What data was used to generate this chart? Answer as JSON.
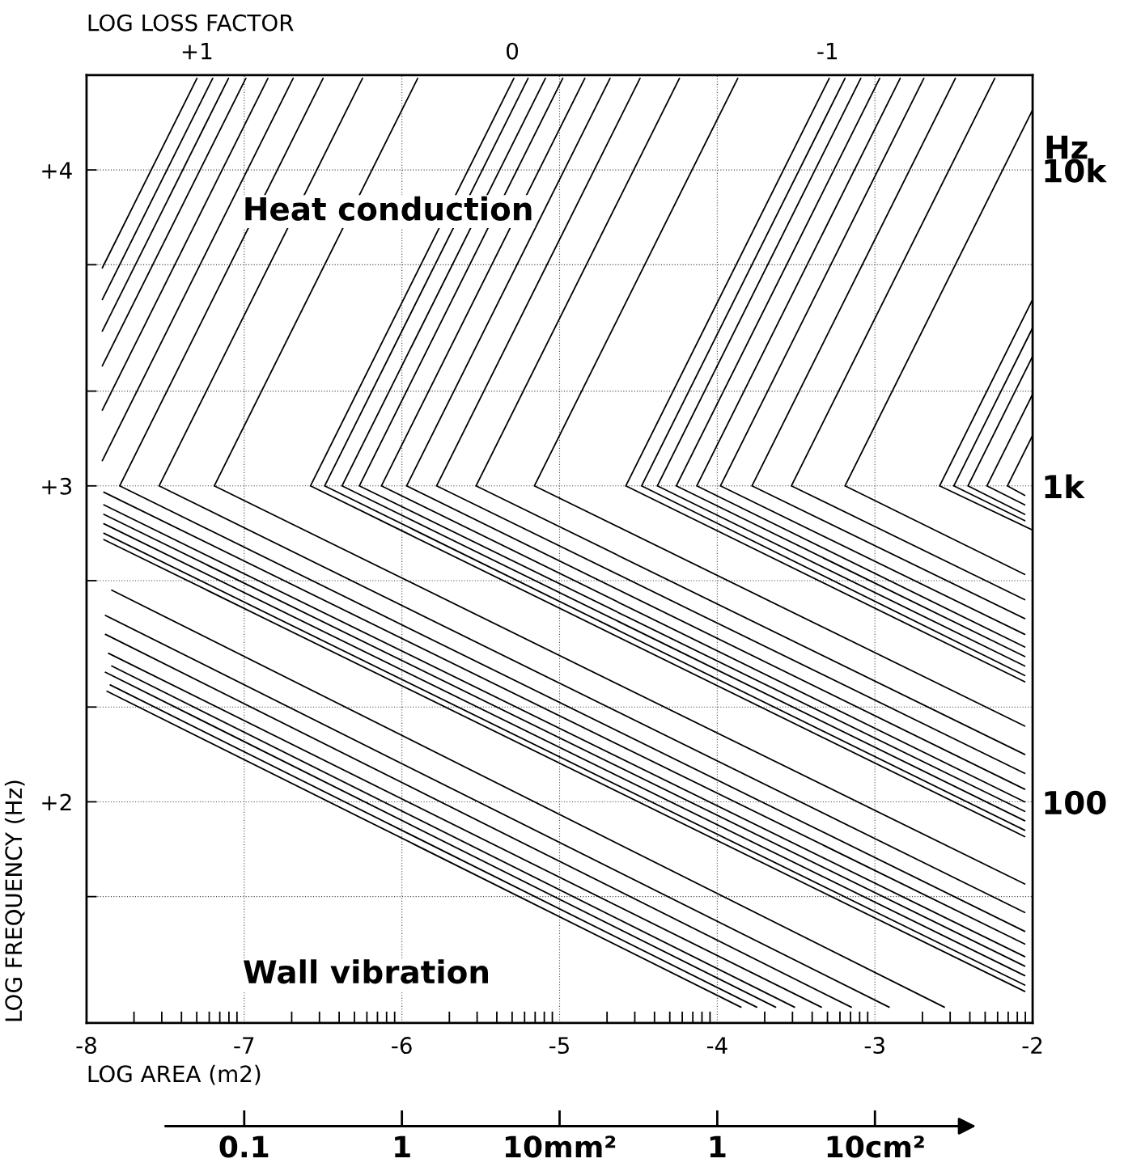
{
  "chart_data": [
    {
      "type": "line",
      "xlabel": "LOG AREA (m2)",
      "ylabel": "LOG FREQUENCY (Hz)",
      "x2label": "LOG LOSS FACTOR",
      "y2label": "Hz",
      "annotations": [
        "Heat conduction",
        "Wall vibration"
      ],
      "xlim": [
        -8,
        -2
      ],
      "ylim": [
        1.3,
        4.3
      ],
      "x2lim": [
        1.35,
        -1.65
      ],
      "y2lim": [
        20,
        20000
      ],
      "log": "y2",
      "xticks": [
        -8,
        {
          "value": -7.699,
          "label": null
        },
        {
          "value": -7.523,
          "label": null
        },
        {
          "value": -7.398,
          "label": null
        },
        {
          "value": -7.301,
          "label": null
        },
        {
          "value": -7.222,
          "label": null
        },
        {
          "value": -7.155,
          "label": null
        },
        {
          "value": -7.097,
          "label": null
        },
        {
          "value": -7.046,
          "label": null
        },
        -7,
        {
          "value": -6.699,
          "label": null
        },
        {
          "value": -6.523,
          "label": null
        },
        {
          "value": -6.398,
          "label": null
        },
        {
          "value": -6.301,
          "label": null
        },
        {
          "value": -6.222,
          "label": null
        },
        {
          "value": -6.155,
          "label": null
        },
        {
          "value": -6.097,
          "label": null
        },
        {
          "value": -6.046,
          "label": null
        },
        -6,
        {
          "value": -5.699,
          "label": null
        },
        {
          "value": -5.523,
          "label": null
        },
        {
          "value": -5.398,
          "label": null
        },
        {
          "value": -5.301,
          "label": null
        },
        {
          "value": -5.222,
          "label": null
        },
        {
          "value": -5.155,
          "label": null
        },
        {
          "value": -5.097,
          "label": null
        },
        {
          "value": -5.046,
          "label": null
        },
        -5,
        {
          "value": -4.699,
          "label": null
        },
        {
          "value": -4.523,
          "label": null
        },
        {
          "value": -4.398,
          "label": null
        },
        {
          "value": -4.301,
          "label": null
        },
        {
          "value": -4.222,
          "label": null
        },
        {
          "value": -4.155,
          "label": null
        },
        {
          "value": -4.097,
          "label": null
        },
        {
          "value": -4.046,
          "label": null
        },
        -4,
        {
          "value": -3.699,
          "label": null
        },
        {
          "value": -3.523,
          "label": null
        },
        {
          "value": -3.398,
          "label": null
        },
        {
          "value": -3.301,
          "label": null
        },
        {
          "value": -3.222,
          "label": null
        },
        {
          "value": -3.155,
          "label": null
        },
        {
          "value": -3.097,
          "label": null
        },
        {
          "value": -3.046,
          "label": null
        },
        -3,
        {
          "value": -2.699,
          "label": null
        },
        {
          "value": -2.523,
          "label": null
        },
        {
          "value": -2.398,
          "label": null
        },
        {
          "value": -2.301,
          "label": null
        },
        {
          "value": -2.222,
          "label": null
        },
        {
          "value": -2.155,
          "label": null
        },
        {
          "value": -2.097,
          "label": null
        },
        {
          "value": -2.046,
          "label": null
        },
        -2
      ],
      "yticks": [
        {
          "value": 1.7,
          "label": null
        },
        {
          "value": 2,
          "label": "+2"
        },
        {
          "value": 2.3,
          "label": null
        },
        {
          "value": 2.7,
          "label": null
        },
        {
          "value": 3,
          "label": "+3"
        },
        {
          "value": 3.3,
          "label": null
        },
        {
          "value": 3.7,
          "label": null
        },
        {
          "value": 4,
          "label": "+4"
        }
      ],
      "x2ticks": [
        {
          "value": 1,
          "label": "+1"
        },
        0,
        -1
      ],
      "y2ticks": [
        {
          "value": 10000,
          "label": "10k"
        },
        {
          "value": 1000,
          "label": "1k"
        },
        100
      ],
      "grid": true,
      "series": [
        {
          "color": "#000000",
          "x": [
            -7.9,
            -7.3
          ],
          "values": [
            3.69,
            4.29
          ]
        },
        {
          "color": "#000000",
          "x": [
            -7.9,
            -7.2
          ],
          "values": [
            3.59,
            4.29
          ]
        },
        {
          "color": "#000000",
          "x": [
            -7.9,
            -7.1
          ],
          "values": [
            3.49,
            4.29
          ]
        },
        {
          "color": "#000000",
          "x": [
            -7.9,
            -6.99
          ],
          "values": [
            3.38,
            4.29
          ]
        },
        {
          "color": "#000000",
          "x": [
            -7.9,
            -6.85
          ],
          "values": [
            3.24,
            4.29
          ]
        },
        {
          "color": "#000000",
          "x": [
            -7.9,
            -6.69
          ],
          "values": [
            3.08,
            4.29
          ]
        },
        {
          "color": "#000000",
          "x": [
            -7.89,
            -2.05
          ],
          "values": [
            2.83,
            1.4
          ]
        },
        {
          "color": "#000000",
          "x": [
            -7.89,
            -2.05
          ],
          "values": [
            2.85,
            1.42
          ]
        },
        {
          "color": "#000000",
          "x": [
            -7.89,
            -2.05
          ],
          "values": [
            2.88,
            1.45
          ]
        },
        {
          "color": "#000000",
          "x": [
            -7.89,
            -2.05
          ],
          "values": [
            2.91,
            1.48
          ]
        },
        {
          "color": "#000000",
          "x": [
            -7.89,
            -2.05
          ],
          "values": [
            2.94,
            1.51
          ]
        },
        {
          "color": "#000000",
          "x": [
            -7.89,
            -2.05
          ],
          "values": [
            2.98,
            1.55
          ]
        },
        {
          "color": "#000000",
          "x": [
            -6.5,
            -7.79,
            -2.05
          ],
          "values": [
            4.29,
            3.0,
            1.59
          ]
        },
        {
          "color": "#000000",
          "x": [
            -6.25,
            -7.54,
            -2.05
          ],
          "values": [
            4.29,
            3.0,
            1.65
          ]
        },
        {
          "color": "#000000",
          "x": [
            -5.9,
            -7.19,
            -2.05
          ],
          "values": [
            4.29,
            3.0,
            1.74
          ]
        },
        {
          "color": "#000000",
          "x": [
            -5.29,
            -6.58,
            -2.05
          ],
          "values": [
            4.29,
            3.0,
            1.89
          ]
        },
        {
          "color": "#000000",
          "x": [
            -5.2,
            -6.49,
            -2.05
          ],
          "values": [
            4.29,
            3.0,
            1.91
          ]
        },
        {
          "color": "#000000",
          "x": [
            -5.09,
            -6.38,
            -2.05
          ],
          "values": [
            4.29,
            3.0,
            1.94
          ]
        },
        {
          "color": "#000000",
          "x": [
            -4.98,
            -6.27,
            -2.05
          ],
          "values": [
            4.29,
            3.0,
            1.97
          ]
        },
        {
          "color": "#000000",
          "x": [
            -4.84,
            -6.13,
            -2.05
          ],
          "values": [
            4.29,
            3.0,
            2.0
          ]
        },
        {
          "color": "#000000",
          "x": [
            -4.68,
            -5.97,
            -2.05
          ],
          "values": [
            4.29,
            3.0,
            2.04
          ]
        },
        {
          "color": "#000000",
          "x": [
            -4.49,
            -5.78,
            -2.05
          ],
          "values": [
            4.29,
            3.0,
            2.09
          ]
        },
        {
          "color": "#000000",
          "x": [
            -4.24,
            -5.53,
            -2.05
          ],
          "values": [
            4.29,
            3.0,
            2.15
          ]
        },
        {
          "color": "#000000",
          "x": [
            -3.87,
            -5.16,
            -2.05
          ],
          "values": [
            4.29,
            3.0,
            2.24
          ]
        },
        {
          "color": "#000000",
          "x": [
            -3.29,
            -4.58,
            -2.05
          ],
          "values": [
            4.29,
            3.0,
            2.38
          ]
        },
        {
          "color": "#000000",
          "x": [
            -3.19,
            -4.48,
            -2.05
          ],
          "values": [
            4.29,
            3.0,
            2.4
          ]
        },
        {
          "color": "#000000",
          "x": [
            -3.09,
            -4.38,
            -2.05
          ],
          "values": [
            4.29,
            3.0,
            2.43
          ]
        },
        {
          "color": "#000000",
          "x": [
            -2.97,
            -4.26,
            -2.05
          ],
          "values": [
            4.29,
            3.0,
            2.46
          ]
        },
        {
          "color": "#000000",
          "x": [
            -2.84,
            -4.13,
            -2.05
          ],
          "values": [
            4.29,
            3.0,
            2.49
          ]
        },
        {
          "color": "#000000",
          "x": [
            -2.69,
            -3.98,
            -2.05
          ],
          "values": [
            4.29,
            3.0,
            2.53
          ]
        },
        {
          "color": "#000000",
          "x": [
            -2.49,
            -3.78,
            -2.05
          ],
          "values": [
            4.29,
            3.0,
            2.58
          ]
        },
        {
          "color": "#000000",
          "x": [
            -2.24,
            -3.53,
            -2.05
          ],
          "values": [
            4.29,
            3.0,
            2.64
          ]
        },
        {
          "color": "#000000",
          "x": [
            -2.0,
            -3.19,
            -2.05
          ],
          "values": [
            4.19,
            3.0,
            2.72
          ]
        },
        {
          "color": "#000000",
          "x": [
            -2.0,
            -2.59,
            -2.0
          ],
          "values": [
            3.59,
            3.0,
            2.86
          ]
        },
        {
          "color": "#000000",
          "x": [
            -2.0,
            -2.5,
            -2.05
          ],
          "values": [
            3.5,
            3.0,
            2.89
          ]
        },
        {
          "color": "#000000",
          "x": [
            -2.0,
            -2.41,
            -2.05
          ],
          "values": [
            3.41,
            3.0,
            2.91
          ]
        },
        {
          "color": "#000000",
          "x": [
            -2.0,
            -2.29,
            -2.05
          ],
          "values": [
            3.29,
            3.0,
            2.94
          ]
        },
        {
          "color": "#000000",
          "x": [
            -2.0,
            -2.16,
            -2.05
          ],
          "values": [
            3.16,
            3.0,
            2.97
          ]
        },
        {
          "color": "#000000",
          "x": [
            -7.84,
            -2.56
          ],
          "values": [
            2.67,
            1.35
          ]
        },
        {
          "color": "#000000",
          "x": [
            -7.88,
            -2.91
          ],
          "values": [
            2.59,
            1.35
          ]
        },
        {
          "color": "#000000",
          "x": [
            -7.88,
            -3.15
          ],
          "values": [
            2.53,
            1.35
          ]
        },
        {
          "color": "#000000",
          "x": [
            -7.86,
            -3.34
          ],
          "values": [
            2.47,
            1.35
          ]
        },
        {
          "color": "#000000",
          "x": [
            -7.84,
            -3.51
          ],
          "values": [
            2.43,
            1.35
          ]
        },
        {
          "color": "#000000",
          "x": [
            -7.88,
            -3.63
          ],
          "values": [
            2.41,
            1.35
          ]
        },
        {
          "color": "#000000",
          "x": [
            -7.85,
            -3.75
          ],
          "values": [
            2.37,
            1.35
          ]
        },
        {
          "color": "#000000",
          "x": [
            -7.87,
            -3.85
          ],
          "values": [
            2.35,
            1.35
          ]
        }
      ]
    },
    {
      "type": "other",
      "categories": [
        "0.1",
        "1",
        "10mm²",
        "1",
        "10cm²"
      ]
    }
  ]
}
